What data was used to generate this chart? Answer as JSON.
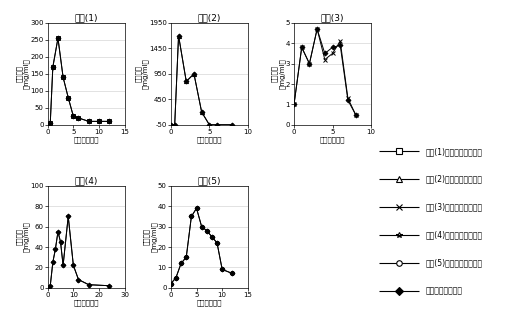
{
  "type1": {
    "title": "类型(1)",
    "xlabel": "时间（小时）",
    "ylabel": "药物浓度\n（mg/ml）",
    "xlim": [
      0,
      15
    ],
    "ylim": [
      0,
      300
    ],
    "yticks": [
      0,
      50,
      100,
      150,
      200,
      250,
      300
    ],
    "xticks": [
      0,
      5,
      10,
      15
    ],
    "calc_x": [
      0,
      0.5,
      1,
      2,
      3,
      4,
      5,
      6,
      8,
      10,
      12
    ],
    "calc_y": [
      0,
      5,
      170,
      255,
      140,
      80,
      25,
      20,
      10,
      10,
      10
    ],
    "meas_x": [
      0,
      0.5,
      1,
      2,
      3,
      4,
      5,
      6,
      8,
      10,
      12
    ],
    "meas_y": [
      0,
      5,
      170,
      255,
      140,
      80,
      25,
      20,
      10,
      10,
      10
    ]
  },
  "type2": {
    "title": "类型(2)",
    "xlabel": "时间（小时）",
    "ylabel": "药物浓度\n（mg/ml）",
    "xlim": [
      0,
      10
    ],
    "ylim": [
      -50,
      1950
    ],
    "yticks": [
      -50,
      450,
      950,
      1450,
      1950
    ],
    "xticks": [
      0,
      5,
      10
    ],
    "calc_x": [
      0,
      0.5,
      1,
      2,
      3,
      4,
      5,
      6,
      8
    ],
    "calc_y": [
      -50,
      -50,
      1700,
      800,
      950,
      200,
      -50,
      -50,
      -50
    ],
    "meas_x": [
      0,
      0.5,
      1,
      2,
      3,
      4,
      5,
      6,
      8
    ],
    "meas_y": [
      -50,
      -50,
      1700,
      800,
      950,
      200,
      -50,
      -50,
      -50
    ]
  },
  "type3": {
    "title": "类型(3)",
    "xlabel": "时间（小时）",
    "ylabel": "药物浓度\n（mg/ml）",
    "xlim": [
      0,
      10
    ],
    "ylim": [
      0,
      5
    ],
    "yticks": [
      0,
      1,
      2,
      3,
      4,
      5
    ],
    "xticks": [
      0,
      5,
      10
    ],
    "calc_x": [
      0,
      1,
      2,
      3,
      4,
      5,
      6,
      7,
      8
    ],
    "calc_y": [
      1.0,
      3.8,
      3.0,
      4.7,
      3.2,
      3.5,
      4.1,
      1.3,
      0.5
    ],
    "meas_x": [
      0,
      1,
      2,
      3,
      4,
      5,
      6,
      7,
      8
    ],
    "meas_y": [
      1.0,
      3.8,
      3.0,
      4.7,
      3.5,
      3.8,
      3.9,
      1.2,
      0.5
    ]
  },
  "type4": {
    "title": "类型(4)",
    "xlabel": "时间（小时）",
    "ylabel": "药物浓度\n（mg/ml）",
    "xlim": [
      0,
      30
    ],
    "ylim": [
      0,
      100
    ],
    "yticks": [
      0,
      20,
      40,
      60,
      80,
      100
    ],
    "xticks": [
      0,
      10,
      20,
      30
    ],
    "calc_x": [
      0,
      1,
      2,
      3,
      4,
      5,
      6,
      8,
      10,
      12,
      16,
      24
    ],
    "calc_y": [
      0,
      2,
      25,
      38,
      55,
      45,
      22,
      70,
      22,
      8,
      3,
      2
    ],
    "meas_x": [
      0,
      1,
      2,
      3,
      4,
      5,
      6,
      8,
      10,
      12,
      16,
      24
    ],
    "meas_y": [
      0,
      2,
      25,
      38,
      55,
      45,
      22,
      70,
      22,
      8,
      3,
      2
    ]
  },
  "type5": {
    "title": "类型(5)",
    "xlabel": "时间（小时）",
    "ylabel": "药物浓度\n（mg/ml）",
    "xlim": [
      0,
      15
    ],
    "ylim": [
      0,
      50
    ],
    "yticks": [
      0,
      10,
      20,
      30,
      40,
      50
    ],
    "xticks": [
      0,
      5,
      10,
      15
    ],
    "calc_x": [
      0,
      1,
      2,
      3,
      4,
      5,
      6,
      7,
      8,
      9,
      10,
      12
    ],
    "calc_y": [
      2,
      5,
      12,
      15,
      35,
      39,
      30,
      28,
      25,
      22,
      9,
      7
    ],
    "meas_x": [
      0,
      1,
      2,
      3,
      4,
      5,
      6,
      7,
      8,
      9,
      10,
      12
    ],
    "meas_y": [
      2,
      5,
      12,
      15,
      35,
      39,
      30,
      28,
      25,
      22,
      9,
      7
    ]
  },
  "legend_entries": [
    "类型(1)的药物浓度计算值",
    "类型(2)的药物浓度计算值",
    "类型(3)的药物浓度计算值",
    "类型(4)的药物浓度计算值",
    "类型(5)的药物浓度计算值",
    "实际测得药物浓度"
  ],
  "legend_markers": [
    "s",
    "^",
    "x",
    "*",
    "o",
    "D"
  ],
  "legend_mfc": [
    "white",
    "white",
    "none",
    "none",
    "white",
    "black"
  ],
  "font_size": 5.5,
  "title_font_size": 6.5,
  "axis_label_font_size": 5.0,
  "tick_font_size": 5.0
}
